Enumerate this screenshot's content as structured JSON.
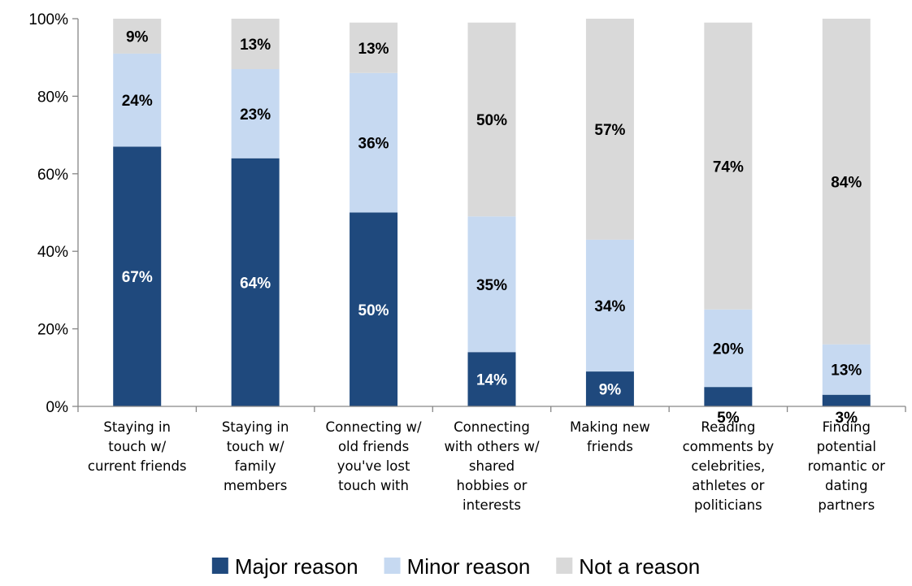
{
  "chart_data": {
    "type": "bar",
    "stacked": true,
    "categories": [
      [
        "Staying in",
        "touch w/",
        "current friends"
      ],
      [
        "Staying in",
        "touch w/",
        "family",
        "members"
      ],
      [
        "Connecting w/",
        "old friends",
        "you've lost",
        "touch with"
      ],
      [
        "Connecting",
        "with others w/",
        "shared",
        "hobbies or",
        "interests"
      ],
      [
        "Making new",
        "friends"
      ],
      [
        "Reading",
        "comments by",
        "celebrities,",
        "athletes or",
        "politicians"
      ],
      [
        "Finding",
        "potential",
        "romantic or",
        "dating",
        "partners"
      ]
    ],
    "series": [
      {
        "name": "Major reason",
        "color": "#1f497d",
        "label_color": "#ffffff",
        "values": [
          67,
          64,
          50,
          14,
          9,
          5,
          3
        ],
        "labels": [
          "67%",
          "64%",
          "50%",
          "14%",
          "9%",
          "5%",
          "3%"
        ]
      },
      {
        "name": "Minor reason",
        "color": "#c6d9f1",
        "label_color": "#000000",
        "values": [
          24,
          23,
          36,
          35,
          34,
          20,
          13
        ],
        "labels": [
          "24%",
          "23%",
          "36%",
          "35%",
          "34%",
          "20%",
          "13%"
        ]
      },
      {
        "name": "Not a reason",
        "color": "#d9d9d9",
        "label_color": "#000000",
        "values": [
          9,
          13,
          13,
          50,
          57,
          74,
          84
        ],
        "labels": [
          "9%",
          "13%",
          "13%",
          "50%",
          "57%",
          "74%",
          "84%"
        ]
      }
    ],
    "ylim": [
      0,
      100
    ],
    "yticks": [
      "0%",
      "20%",
      "40%",
      "60%",
      "80%",
      "100%"
    ],
    "ytick_values": [
      0,
      20,
      40,
      60,
      80,
      100
    ],
    "grid": false,
    "legend_position": "bottom"
  }
}
